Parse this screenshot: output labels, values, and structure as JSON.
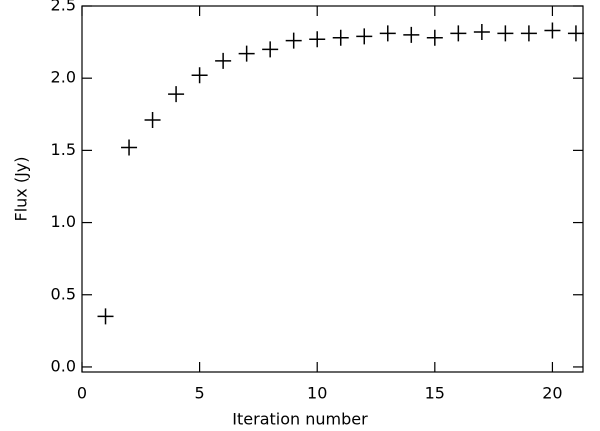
{
  "chart_data": {
    "type": "scatter",
    "marker": "plus",
    "color": "#000000",
    "xlabel": "Iteration number",
    "ylabel": "Flux (Jy)",
    "x": [
      1,
      2,
      3,
      4,
      5,
      6,
      7,
      8,
      9,
      10,
      11,
      12,
      13,
      14,
      15,
      16,
      17,
      18,
      19,
      20,
      21
    ],
    "values": [
      0.35,
      1.52,
      1.71,
      1.89,
      2.02,
      2.12,
      2.17,
      2.2,
      2.26,
      2.27,
      2.28,
      2.29,
      2.31,
      2.3,
      2.28,
      2.31,
      2.32,
      2.31,
      2.31,
      2.33,
      2.31
    ],
    "xlim": [
      0,
      21.3
    ],
    "ylim": [
      -0.035,
      2.5
    ],
    "xticks": [
      0,
      5,
      10,
      15,
      20
    ],
    "yticks": [
      {
        "value": 0,
        "label": "0.0"
      },
      {
        "value": 0.5,
        "label": "0.5"
      },
      {
        "value": 1,
        "label": "1.0"
      },
      {
        "value": 1.5,
        "label": "1.5"
      },
      {
        "value": 2,
        "label": "2.0"
      },
      {
        "value": 2.5,
        "label": "2.5"
      }
    ],
    "grid": false
  }
}
